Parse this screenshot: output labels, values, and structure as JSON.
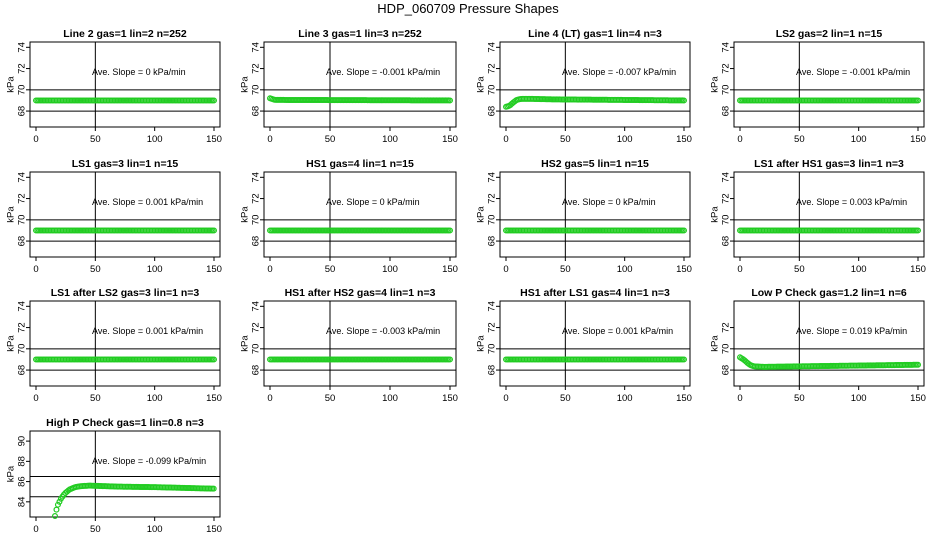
{
  "page_title": "HDP_060709  Pressure Shapes",
  "colors": {
    "series": "#22cc22",
    "axis": "#000000"
  },
  "chart_data": [
    {
      "type": "scatter",
      "title": "Line 2 gas=1 lin=2 n=252",
      "ylabel": "kPa",
      "annotation": "Ave. Slope =  0  kPa/min",
      "xlim": [
        0,
        150
      ],
      "ylim": [
        66.5,
        74.5
      ],
      "xticks": [
        0,
        50,
        100,
        150
      ],
      "yticks": [
        68,
        70,
        72,
        74
      ],
      "hlines": [
        68,
        70
      ],
      "vline": 50,
      "points": [
        [
          0,
          69
        ],
        [
          150,
          69
        ]
      ]
    },
    {
      "type": "scatter",
      "title": "Line 3 gas=1 lin=3 n=252",
      "ylabel": "kPa",
      "annotation": "Ave. Slope =  -0.001  kPa/min",
      "xlim": [
        0,
        150
      ],
      "ylim": [
        66.5,
        74.5
      ],
      "xticks": [
        0,
        50,
        100,
        150
      ],
      "yticks": [
        68,
        70,
        72,
        74
      ],
      "hlines": [
        68,
        70
      ],
      "vline": 50,
      "points": [
        [
          0,
          69.2
        ],
        [
          4,
          69.05
        ],
        [
          150,
          69
        ]
      ]
    },
    {
      "type": "scatter",
      "title": "Line 4 (LT) gas=1 lin=4 n=3",
      "ylabel": "kPa",
      "annotation": "Ave. Slope =  -0.007  kPa/min",
      "xlim": [
        0,
        150
      ],
      "ylim": [
        66.5,
        74.5
      ],
      "xticks": [
        0,
        50,
        100,
        150
      ],
      "yticks": [
        68,
        70,
        72,
        74
      ],
      "hlines": [
        68,
        70
      ],
      "vline": 50,
      "points": [
        [
          0,
          68.4
        ],
        [
          3,
          68.5
        ],
        [
          6,
          68.8
        ],
        [
          9,
          69.05
        ],
        [
          13,
          69.15
        ],
        [
          20,
          69.15
        ],
        [
          40,
          69.1
        ],
        [
          150,
          69
        ]
      ]
    },
    {
      "type": "scatter",
      "title": "LS2 gas=2 lin=1 n=15",
      "ylabel": "kPa",
      "annotation": "Ave. Slope =  -0.001  kPa/min",
      "xlim": [
        0,
        150
      ],
      "ylim": [
        66.5,
        74.5
      ],
      "xticks": [
        0,
        50,
        100,
        150
      ],
      "yticks": [
        68,
        70,
        72,
        74
      ],
      "hlines": [
        68,
        70
      ],
      "vline": 50,
      "points": [
        [
          0,
          69
        ],
        [
          150,
          69
        ]
      ]
    },
    {
      "type": "scatter",
      "title": "LS1 gas=3 lin=1 n=15",
      "ylabel": "kPa",
      "annotation": "Ave. Slope =  0.001  kPa/min",
      "xlim": [
        0,
        150
      ],
      "ylim": [
        66.5,
        74.5
      ],
      "xticks": [
        0,
        50,
        100,
        150
      ],
      "yticks": [
        68,
        70,
        72,
        74
      ],
      "hlines": [
        68,
        70
      ],
      "vline": 50,
      "points": [
        [
          0,
          69
        ],
        [
          150,
          69
        ]
      ]
    },
    {
      "type": "scatter",
      "title": "HS1 gas=4 lin=1 n=15",
      "ylabel": "kPa",
      "annotation": "Ave. Slope =  0  kPa/min",
      "xlim": [
        0,
        150
      ],
      "ylim": [
        66.5,
        74.5
      ],
      "xticks": [
        0,
        50,
        100,
        150
      ],
      "yticks": [
        68,
        70,
        72,
        74
      ],
      "hlines": [
        68,
        70
      ],
      "vline": 50,
      "points": [
        [
          0,
          69
        ],
        [
          150,
          69
        ]
      ]
    },
    {
      "type": "scatter",
      "title": "HS2 gas=5 lin=1 n=15",
      "ylabel": "kPa",
      "annotation": "Ave. Slope =  0  kPa/min",
      "xlim": [
        0,
        150
      ],
      "ylim": [
        66.5,
        74.5
      ],
      "xticks": [
        0,
        50,
        100,
        150
      ],
      "yticks": [
        68,
        70,
        72,
        74
      ],
      "hlines": [
        68,
        70
      ],
      "vline": 50,
      "points": [
        [
          0,
          69
        ],
        [
          150,
          69
        ]
      ]
    },
    {
      "type": "scatter",
      "title": "LS1 after HS1 gas=3 lin=1 n=3",
      "ylabel": "kPa",
      "annotation": "Ave. Slope =  0.003  kPa/min",
      "xlim": [
        0,
        150
      ],
      "ylim": [
        66.5,
        74.5
      ],
      "xticks": [
        0,
        50,
        100,
        150
      ],
      "yticks": [
        68,
        70,
        72,
        74
      ],
      "hlines": [
        68,
        70
      ],
      "vline": 50,
      "points": [
        [
          0,
          69
        ],
        [
          150,
          69
        ]
      ]
    },
    {
      "type": "scatter",
      "title": "LS1 after LS2 gas=3 lin=1 n=3",
      "ylabel": "kPa",
      "annotation": "Ave. Slope =  0.001  kPa/min",
      "xlim": [
        0,
        150
      ],
      "ylim": [
        66.5,
        74.5
      ],
      "xticks": [
        0,
        50,
        100,
        150
      ],
      "yticks": [
        68,
        70,
        72,
        74
      ],
      "hlines": [
        68,
        70
      ],
      "vline": 50,
      "points": [
        [
          0,
          69
        ],
        [
          150,
          69
        ]
      ]
    },
    {
      "type": "scatter",
      "title": "HS1 after HS2 gas=4 lin=1 n=3",
      "ylabel": "kPa",
      "annotation": "Ave. Slope =  -0.003  kPa/min",
      "xlim": [
        0,
        150
      ],
      "ylim": [
        66.5,
        74.5
      ],
      "xticks": [
        0,
        50,
        100,
        150
      ],
      "yticks": [
        68,
        70,
        72,
        74
      ],
      "hlines": [
        68,
        70
      ],
      "vline": 50,
      "points": [
        [
          0,
          69
        ],
        [
          150,
          69
        ]
      ]
    },
    {
      "type": "scatter",
      "title": "HS1 after LS1 gas=4 lin=1 n=3",
      "ylabel": "kPa",
      "annotation": "Ave. Slope =  0.001  kPa/min",
      "xlim": [
        0,
        150
      ],
      "ylim": [
        66.5,
        74.5
      ],
      "xticks": [
        0,
        50,
        100,
        150
      ],
      "yticks": [
        68,
        70,
        72,
        74
      ],
      "hlines": [
        68,
        70
      ],
      "vline": 50,
      "points": [
        [
          0,
          69
        ],
        [
          150,
          69
        ]
      ]
    },
    {
      "type": "scatter",
      "title": "Low P Check gas=1.2 lin=1 n=6",
      "ylabel": "kPa",
      "annotation": "Ave. Slope =  0.019  kPa/min",
      "xlim": [
        0,
        150
      ],
      "ylim": [
        66.5,
        74.5
      ],
      "xticks": [
        0,
        50,
        100,
        150
      ],
      "yticks": [
        68,
        70,
        72
      ],
      "hlines": [
        68,
        70
      ],
      "vline": 50,
      "points": [
        [
          0,
          69.2
        ],
        [
          3,
          69.0
        ],
        [
          6,
          68.7
        ],
        [
          9,
          68.45
        ],
        [
          12,
          68.35
        ],
        [
          20,
          68.3
        ],
        [
          50,
          68.35
        ],
        [
          150,
          68.5
        ]
      ]
    },
    {
      "type": "scatter",
      "title": "High P Check gas=1 lin=0.8 n=3",
      "ylabel": "kPa",
      "annotation": "Ave. Slope =  -0.099  kPa/min",
      "xlim": [
        0,
        150
      ],
      "ylim": [
        82.5,
        91
      ],
      "xticks": [
        0,
        50,
        100,
        150
      ],
      "yticks": [
        84,
        86,
        88,
        90
      ],
      "hlines": [
        84.5,
        86.5
      ],
      "vline": 50,
      "points": [
        [
          16,
          82.6
        ],
        [
          18,
          83.6
        ],
        [
          21,
          84.3
        ],
        [
          24,
          84.8
        ],
        [
          28,
          85.2
        ],
        [
          33,
          85.45
        ],
        [
          38,
          85.55
        ],
        [
          45,
          85.6
        ],
        [
          70,
          85.5
        ],
        [
          100,
          85.45
        ],
        [
          150,
          85.3
        ]
      ]
    }
  ]
}
